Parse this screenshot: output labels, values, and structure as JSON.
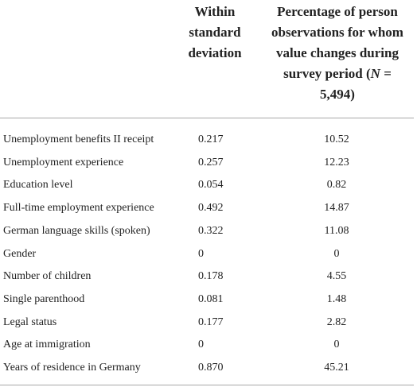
{
  "header": {
    "col2": "Within standard deviation",
    "col3_parts": [
      "Percentage of person observations for whom value changes during survey period (",
      "N",
      " = 5,494)"
    ]
  },
  "rows": [
    [
      "Unemployment benefits II receipt",
      "0.217",
      "10.52"
    ],
    [
      "Unemployment experience",
      "0.257",
      "12.23"
    ],
    [
      "Education level",
      "0.054",
      "0.82"
    ],
    [
      "Full-time employment experience",
      "0.492",
      "14.87"
    ],
    [
      "German language skills (spoken)",
      "0.322",
      "11.08"
    ],
    [
      "Gender",
      "0",
      "0"
    ],
    [
      "Number of children",
      "0.178",
      "4.55"
    ],
    [
      "Single parenthood",
      "0.081",
      "1.48"
    ],
    [
      "Legal status",
      "0.177",
      "2.82"
    ],
    [
      "Age at immigration",
      "0",
      "0"
    ],
    [
      "Years of residence in Germany",
      "0.870",
      "45.21"
    ]
  ]
}
